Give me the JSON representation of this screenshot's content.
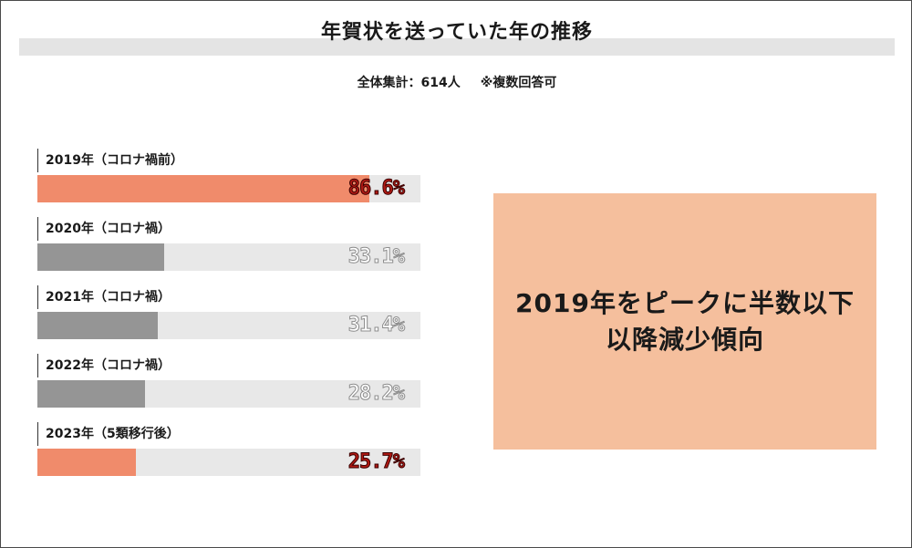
{
  "header": {
    "title": "年賀状を送っていた年の推移",
    "subtitle_main": "全体集計：614人",
    "subtitle_note": "※複数回答可"
  },
  "callout": {
    "line1": "2019年をピークに半数以下",
    "line2": "以降減少傾向"
  },
  "colors": {
    "highlight_bar": "#f08b6b",
    "normal_bar": "#959595",
    "track": "#e8e8e8",
    "callout_bg": "#f5bf9d"
  },
  "chart_data": {
    "type": "bar",
    "orientation": "horizontal",
    "title": "年賀状を送っていた年の推移",
    "xlim": [
      0,
      100
    ],
    "grid": false,
    "categories": [
      "2019年（コロナ禍前）",
      "2020年（コロナ禍）",
      "2021年（コロナ禍）",
      "2022年（コロナ禍）",
      "2023年（5類移行後）"
    ],
    "values": [
      86.6,
      33.1,
      31.4,
      28.2,
      25.7
    ],
    "value_labels": [
      "86.6%",
      "33.1%",
      "31.4%",
      "28.2%",
      "25.7%"
    ],
    "highlighted": [
      true,
      false,
      false,
      false,
      true
    ]
  }
}
